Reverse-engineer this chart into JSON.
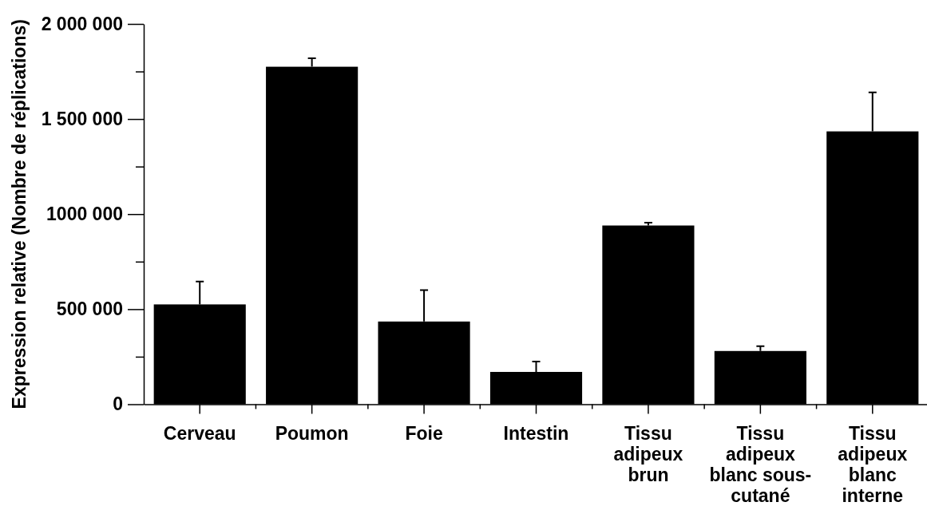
{
  "chart_data": {
    "type": "bar",
    "ylabel": "Expression relative (Nombre de réplications)",
    "categories": [
      "Cerveau",
      "Poumon",
      "Foie",
      "Intestin",
      "Tissu adipeux brun",
      "Tissu adipeux blanc sous-cutané",
      "Tissu adipeux blanc interne"
    ],
    "values": [
      525000,
      1775000,
      435000,
      170000,
      940000,
      280000,
      1435000
    ],
    "errors": [
      [
        525000,
        645000
      ],
      [
        1775000,
        1820000
      ],
      [
        435000,
        600000
      ],
      [
        170000,
        225000
      ],
      [
        940000,
        955000
      ],
      [
        280000,
        305000
      ],
      [
        1435000,
        1640000
      ]
    ],
    "color": "#000000",
    "ylim": [
      0,
      2000000
    ],
    "yticks": [
      0,
      {
        "value": 250000,
        "label": null
      },
      {
        "value": 500000,
        "label": "500 000"
      },
      {
        "value": 750000,
        "label": null
      },
      {
        "value": 1000000,
        "label": "1000 000"
      },
      {
        "value": 1250000,
        "label": null
      },
      {
        "value": 1500000,
        "label": "1 500 000"
      },
      {
        "value": 1750000,
        "label": null
      },
      {
        "value": 2000000,
        "label": "2 000 000"
      }
    ]
  }
}
